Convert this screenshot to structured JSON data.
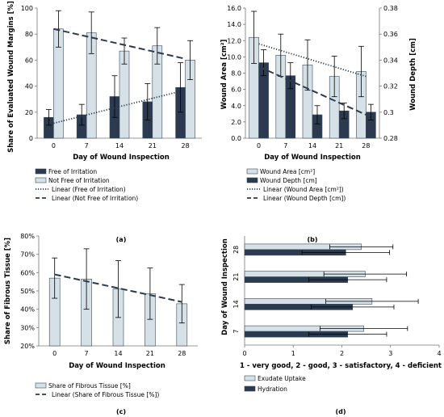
{
  "colors": {
    "dark": "#2b3a4e",
    "light": "#d5e1e6",
    "edge": "#3a4a5c"
  },
  "chart_data": [
    {
      "id": "a",
      "type": "bar",
      "caption": "(a)",
      "xlabel": "Day of Wound Inspection",
      "ylabel": "Share of Evaluated Wound Margins [%]",
      "ylim": [
        0,
        100
      ],
      "yticks": [
        "0",
        "20",
        "40",
        "60",
        "80",
        "100"
      ],
      "categories": [
        "0",
        "7",
        "14",
        "21",
        "28"
      ],
      "series": [
        {
          "name": "Free of Irritation",
          "values": [
            16,
            18,
            32,
            28,
            39
          ],
          "err": [
            6,
            8,
            16,
            14,
            19
          ],
          "color": "dark"
        },
        {
          "name": "Not Free of Irritation",
          "values": [
            84,
            81,
            67,
            71,
            60
          ],
          "err": [
            14,
            16,
            10,
            14,
            15
          ],
          "color": "light"
        }
      ],
      "trendlines": [
        {
          "name": "Linear (Free of Irritation)",
          "style": "dotted",
          "from": 11.5,
          "to": 37
        },
        {
          "name": "Linear (Not Free of Irritation)",
          "style": "dashed",
          "from": 84,
          "to": 61
        }
      ]
    },
    {
      "id": "b",
      "type": "bar",
      "caption": "(b)",
      "xlabel": "Day of Wound Inspection",
      "ylabel": "Wound Area [cm²]",
      "ylabel_right": "Wound Depth [cm]",
      "ylim": [
        0,
        16
      ],
      "ylim_right": [
        0.28,
        0.38
      ],
      "yticks": [
        "0.0",
        "2.0",
        "4.0",
        "6.0",
        "8.0",
        "10.0",
        "12.0",
        "14.0",
        "16.0"
      ],
      "yticks_right": [
        "0.28",
        "0.3",
        "0.32",
        "0.34",
        "0.36",
        "0.38"
      ],
      "categories": [
        "0",
        "7",
        "14",
        "21",
        "28"
      ],
      "series": [
        {
          "name": "Wound Area [cm²]",
          "axis": "left",
          "values": [
            12.4,
            10.2,
            9.0,
            7.6,
            8.2
          ],
          "err": [
            3.2,
            2.6,
            3.1,
            2.5,
            3.1
          ],
          "color": "light"
        },
        {
          "name": "Wound Depth [cm]",
          "axis": "right",
          "values": [
            0.338,
            0.328,
            0.298,
            0.301,
            0.3
          ],
          "err": [
            0.01,
            0.01,
            0.007,
            0.006,
            0.006
          ],
          "color": "dark"
        }
      ],
      "trendlines": [
        {
          "name": "Linear (Wound Area [cm²])",
          "style": "dotted",
          "axis": "left",
          "from": 11.6,
          "to": 7.6
        },
        {
          "name": "Linear (Wound Depth [cm])",
          "style": "dashed",
          "axis": "right",
          "from": 0.335,
          "to": 0.298
        }
      ]
    },
    {
      "id": "c",
      "type": "bar",
      "caption": "(c)",
      "xlabel": "Day of Wound Inspection",
      "ylabel": "Share of Fibrous Tissue [%]",
      "ylim": [
        20,
        80
      ],
      "yticks": [
        "20%",
        "30%",
        "40%",
        "50%",
        "60%",
        "70%",
        "80%"
      ],
      "categories": [
        "0",
        "7",
        "14",
        "21",
        "28"
      ],
      "series": [
        {
          "name": "Share of Fibrous Tissue [%]",
          "values": [
            57,
            56.5,
            51,
            48.5,
            43
          ],
          "err": [
            11,
            16.5,
            15.5,
            14,
            10.5
          ],
          "color": "light"
        }
      ],
      "trendlines": [
        {
          "name": "Linear (Share of Fibrous Tissue [%])",
          "style": "dashed",
          "from": 59,
          "to": 44
        }
      ]
    },
    {
      "id": "d",
      "type": "bar",
      "orientation": "horizontal",
      "caption": "(d)",
      "xlabel": "1 - very good, 2 - good, 3 - satisfactory, 4 - deficient",
      "ylabel": "Day of Wound Inspection",
      "xlim": [
        0,
        4
      ],
      "xticks": [
        "0",
        "1",
        "2",
        "3",
        "4"
      ],
      "categories": [
        "7",
        "14",
        "21",
        "28"
      ],
      "series": [
        {
          "name": "Exudate Uptake",
          "values": [
            2.45,
            2.62,
            2.48,
            2.4
          ],
          "err": [
            0.9,
            0.95,
            0.85,
            0.65
          ],
          "color": "light"
        },
        {
          "name": "Hydration",
          "values": [
            2.12,
            2.22,
            2.12,
            2.08
          ],
          "err": [
            0.8,
            0.85,
            0.8,
            0.9
          ],
          "color": "dark"
        }
      ]
    }
  ]
}
